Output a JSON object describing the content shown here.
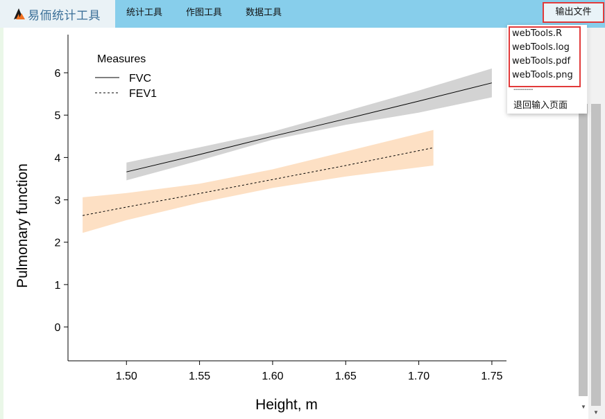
{
  "app": {
    "brand": "易侕统计工具",
    "menu": [
      "统计工具",
      "作图工具",
      "数据工具"
    ],
    "export_label": "输出文件"
  },
  "dropdown": {
    "files": [
      "webTools.R",
      "webTools.log",
      "webTools.pdf",
      "webTools.png"
    ],
    "separator": "---------",
    "back": "退回输入页面"
  },
  "chart_data": {
    "type": "line",
    "xlabel": "Height, m",
    "ylabel": "Pulmonary function",
    "legend_title": "Measures",
    "legend_position": "top-left",
    "xlim": [
      1.46,
      1.76
    ],
    "ylim": [
      -0.8,
      6.9
    ],
    "x_ticks": [
      "1.50",
      "1.55",
      "1.60",
      "1.65",
      "1.70",
      "1.75"
    ],
    "y_ticks": [
      "0",
      "1",
      "2",
      "3",
      "4",
      "5",
      "6"
    ],
    "grid": false,
    "series": [
      {
        "name": "FVC",
        "line_style": "solid",
        "band_color": "#d3d3d3",
        "x": [
          1.5,
          1.55,
          1.6,
          1.65,
          1.7,
          1.75
        ],
        "y": [
          3.66,
          4.07,
          4.5,
          4.91,
          5.33,
          5.76
        ],
        "lower": [
          3.46,
          3.93,
          4.42,
          4.77,
          5.06,
          5.42
        ],
        "upper": [
          3.88,
          4.24,
          4.61,
          5.09,
          5.58,
          6.1
        ]
      },
      {
        "name": "FEV1",
        "line_style": "dashed",
        "band_color": "#fde0c4",
        "x": [
          1.47,
          1.5,
          1.55,
          1.6,
          1.65,
          1.71
        ],
        "y": [
          2.63,
          2.83,
          3.15,
          3.48,
          3.81,
          4.23
        ],
        "lower": [
          2.22,
          2.52,
          2.93,
          3.28,
          3.55,
          3.81
        ],
        "upper": [
          3.06,
          3.16,
          3.38,
          3.72,
          4.14,
          4.65
        ]
      }
    ]
  }
}
